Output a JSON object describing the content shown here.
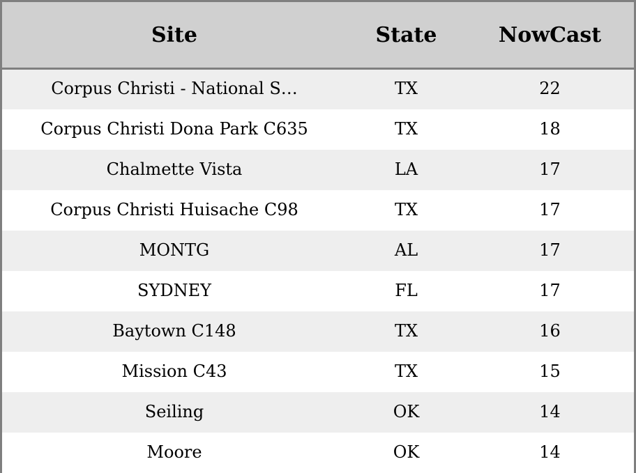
{
  "chart_data": {
    "type": "table",
    "columns": [
      "Site",
      "State",
      "NowCast"
    ],
    "rows": [
      {
        "site": "Corpus Christi - National S…",
        "state": "TX",
        "nowcast": "22"
      },
      {
        "site": "Corpus Christi Dona Park C635",
        "state": "TX",
        "nowcast": "18"
      },
      {
        "site": "Chalmette Vista",
        "state": "LA",
        "nowcast": "17"
      },
      {
        "site": "Corpus Christi Huisache C98",
        "state": "TX",
        "nowcast": "17"
      },
      {
        "site": "MONTG",
        "state": "AL",
        "nowcast": "17"
      },
      {
        "site": "SYDNEY",
        "state": "FL",
        "nowcast": "17"
      },
      {
        "site": "Baytown C148",
        "state": "TX",
        "nowcast": "16"
      },
      {
        "site": "Mission C43",
        "state": "TX",
        "nowcast": "15"
      },
      {
        "site": "Seiling",
        "state": "OK",
        "nowcast": "14"
      },
      {
        "site": "Moore",
        "state": "OK",
        "nowcast": "14"
      }
    ],
    "colors": {
      "header_bg": "#d0d0d0",
      "row_alt_bg": "#eeeeee",
      "row_bg": "#ffffff",
      "border": "#7f7f7f"
    }
  }
}
